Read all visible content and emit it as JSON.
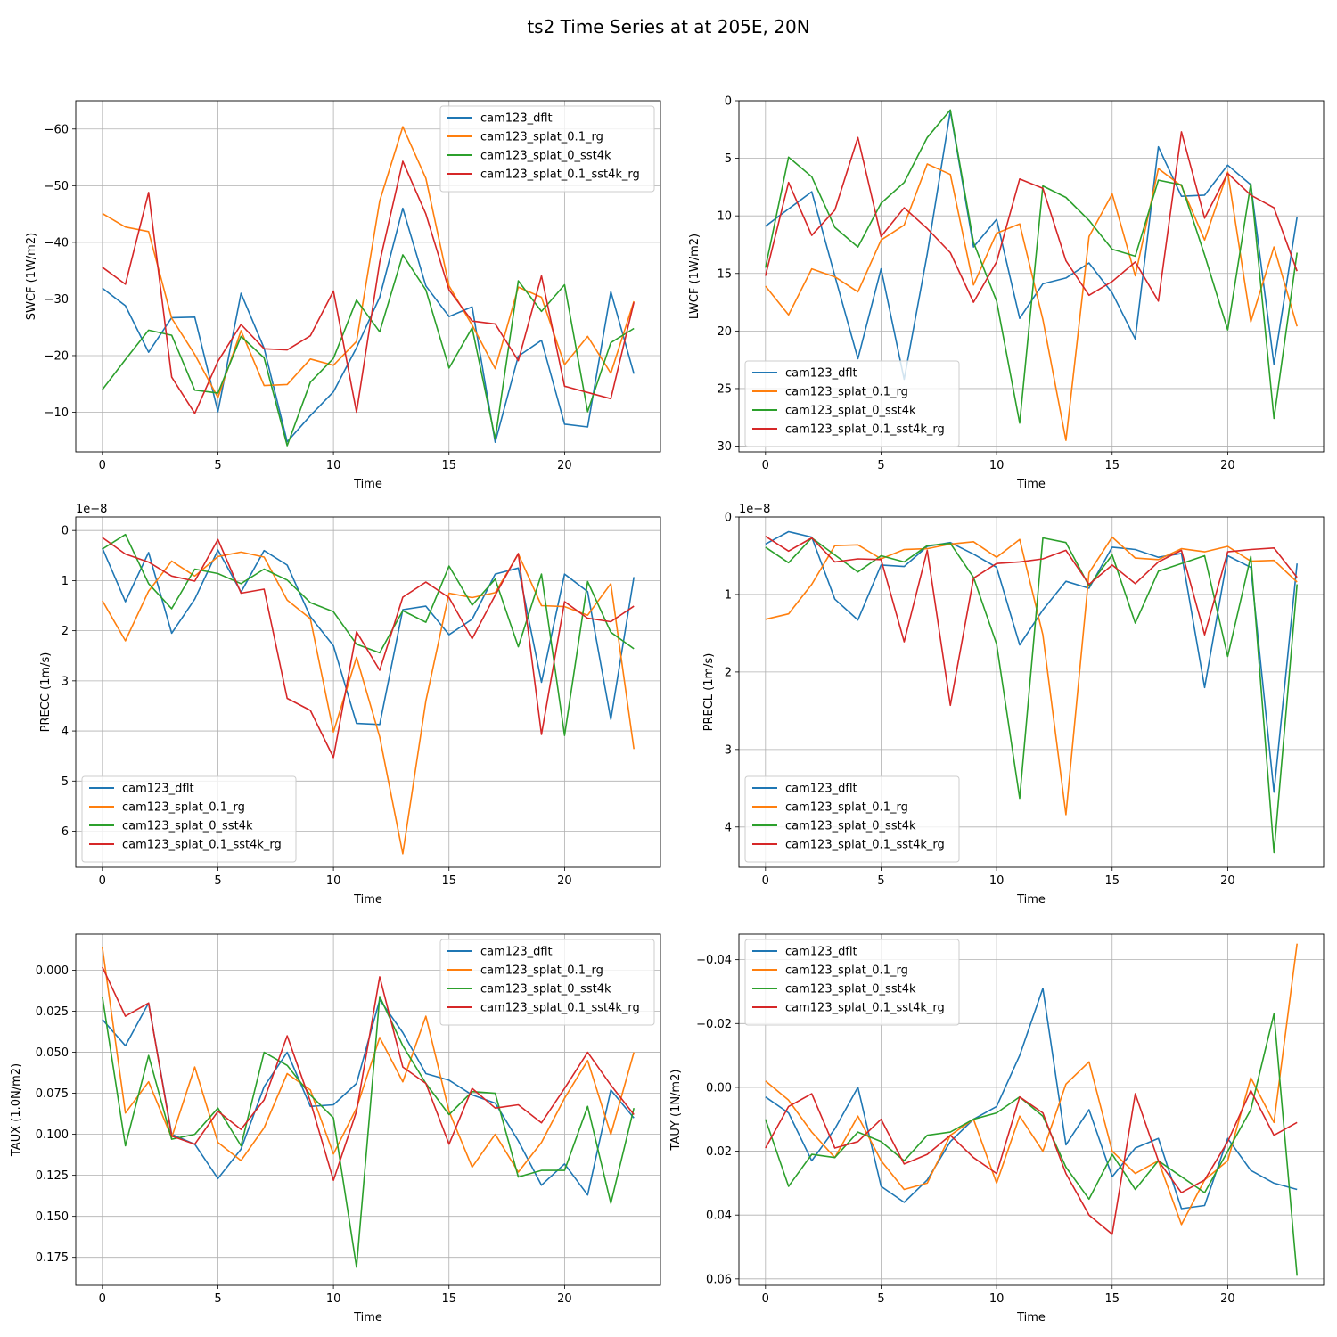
{
  "figure_title": "ts2 Time Series at at 205E, 20N",
  "series_colors": {
    "cam123_dflt": "#1f77b4",
    "cam123_splat_0.1_rg": "#ff7f0e",
    "cam123_splat_0_sst4k": "#2ca02c",
    "cam123_splat_0.1_sst4k_rg": "#d62728"
  },
  "chart_data": [
    {
      "type": "line",
      "xlabel": "Time",
      "ylabel": "SWCF (1W/m2)",
      "ylim": [
        -65,
        -3
      ],
      "inverted_y": true,
      "xlim": [
        -1.15,
        24.15
      ],
      "xticks": [
        0,
        5,
        10,
        15,
        20
      ],
      "yticks": [
        -60,
        -50,
        -40,
        -30,
        -20,
        -10
      ],
      "ytick_labels": [
        "−60",
        "−50",
        "−40",
        "−30",
        "−20",
        "−10"
      ],
      "offset_label": "",
      "legend_position": "upper right",
      "x": [
        0,
        1,
        2,
        3,
        4,
        5,
        6,
        7,
        8,
        9,
        10,
        11,
        12,
        13,
        14,
        15,
        16,
        17,
        18,
        19,
        20,
        21,
        22,
        23
      ],
      "series": [
        {
          "name": "cam123_dflt",
          "values": [
            -31.9,
            -28.8,
            -20.6,
            -26.7,
            -26.8,
            -10.1,
            -31,
            -21.3,
            -4.8,
            -9.4,
            -13.6,
            -21.4,
            -30.3,
            -46,
            -32.3,
            -26.9,
            -28.6,
            -4.7,
            -19.9,
            -22.7,
            -7.9,
            -7.4,
            -31.3,
            -16.8
          ]
        },
        {
          "name": "cam123_splat_0.1_rg",
          "values": [
            -45.1,
            -42.7,
            -41.9,
            -26.6,
            -20.2,
            -12.6,
            -24.4,
            -14.7,
            -14.9,
            -19.4,
            -18.3,
            -22.5,
            -47.3,
            -60.4,
            -51.3,
            -32.3,
            -25.4,
            -17.7,
            -32.1,
            -30.3,
            -18.4,
            -23.4,
            -16.9,
            -29.6
          ]
        },
        {
          "name": "cam123_splat_0_sst4k",
          "values": [
            -14,
            -19.3,
            -24.5,
            -23.6,
            -13.9,
            -13.4,
            -23.4,
            -19.6,
            -4.1,
            -15.3,
            -19.5,
            -29.8,
            -24.2,
            -37.8,
            -31.6,
            -17.8,
            -24.9,
            -5.3,
            -33.2,
            -27.8,
            -32.5,
            -10.1,
            -22.3,
            -24.8
          ]
        },
        {
          "name": "cam123_splat_0.1_sst4k_rg",
          "values": [
            -35.6,
            -32.6,
            -48.8,
            -16.2,
            -9.8,
            -19,
            -25.5,
            -21.2,
            -21,
            -23.5,
            -31.4,
            -10,
            -36.5,
            -54.3,
            -45,
            -31.6,
            -26.1,
            -25.6,
            -19.1,
            -34.1,
            -14.6,
            -13.5,
            -12.4,
            -29.4
          ]
        }
      ]
    },
    {
      "type": "line",
      "xlabel": "Time",
      "ylabel": "LWCF (1W/m2)",
      "ylim": [
        0,
        30.5
      ],
      "inverted_y": true,
      "xlim": [
        -1.15,
        24.15
      ],
      "xticks": [
        0,
        5,
        10,
        15,
        20
      ],
      "yticks": [
        0,
        5,
        10,
        15,
        20,
        25,
        30
      ],
      "ytick_labels": [
        "0",
        "5",
        "10",
        "15",
        "20",
        "25",
        "30"
      ],
      "offset_label": "",
      "legend_position": "lower left",
      "x": [
        0,
        1,
        2,
        3,
        4,
        5,
        6,
        7,
        8,
        9,
        10,
        11,
        12,
        13,
        14,
        15,
        16,
        17,
        18,
        19,
        20,
        21,
        22,
        23
      ],
      "series": [
        {
          "name": "cam123_dflt",
          "values": [
            10.9,
            9.4,
            7.9,
            15.2,
            22.4,
            14.6,
            24.2,
            13.3,
            0.9,
            12.7,
            10.3,
            18.9,
            15.9,
            15.4,
            14.1,
            16.7,
            20.7,
            4,
            8.3,
            8.2,
            5.6,
            7.3,
            22.9,
            10.1
          ]
        },
        {
          "name": "cam123_splat_0.1_rg",
          "values": [
            16.1,
            18.6,
            14.6,
            15.3,
            16.6,
            12.1,
            10.8,
            5.5,
            6.4,
            16,
            11.5,
            10.7,
            19,
            29.5,
            11.8,
            8.1,
            15.2,
            5.9,
            7.4,
            12.1,
            6.2,
            19.2,
            12.7,
            19.6
          ]
        },
        {
          "name": "cam123_splat_0_sst4k",
          "values": [
            14.5,
            4.9,
            6.6,
            11,
            12.7,
            8.9,
            7.1,
            3.2,
            0.8,
            12.3,
            17.4,
            28,
            7.4,
            8.4,
            10.4,
            12.9,
            13.5,
            6.9,
            7.3,
            13.4,
            19.9,
            7.2,
            27.6,
            13.2
          ]
        },
        {
          "name": "cam123_splat_0.1_sst4k_rg",
          "values": [
            15.2,
            7.1,
            11.7,
            9.5,
            3.2,
            11.8,
            9.3,
            11.1,
            13.2,
            17.5,
            14,
            6.8,
            7.6,
            13.9,
            16.9,
            15.7,
            14,
            17.4,
            2.7,
            10.2,
            6.3,
            8.2,
            9.3,
            14.8
          ]
        }
      ]
    },
    {
      "type": "line",
      "xlabel": "Time",
      "ylabel": "PRECC (1m/s)",
      "ylim": [
        -0.27,
        6.72
      ],
      "inverted_y": true,
      "xlim": [
        -1.15,
        24.15
      ],
      "xticks": [
        0,
        5,
        10,
        15,
        20
      ],
      "yticks": [
        0,
        1,
        2,
        3,
        4,
        5,
        6
      ],
      "ytick_labels": [
        "0",
        "1",
        "2",
        "3",
        "4",
        "5",
        "6"
      ],
      "offset_label": "1e−8",
      "legend_position": "lower left",
      "x": [
        0,
        1,
        2,
        3,
        4,
        5,
        6,
        7,
        8,
        9,
        10,
        11,
        12,
        13,
        14,
        15,
        16,
        17,
        18,
        19,
        20,
        21,
        22,
        23
      ],
      "series": [
        {
          "name": "cam123_dflt",
          "values": [
            0.35,
            1.42,
            0.44,
            2.05,
            1.37,
            0.39,
            1.23,
            0.4,
            0.69,
            1.72,
            2.3,
            3.85,
            3.87,
            1.58,
            1.51,
            2.08,
            1.77,
            0.87,
            0.75,
            3.03,
            0.87,
            1.22,
            3.77,
            0.93
          ]
        },
        {
          "name": "cam123_splat_0.1_rg",
          "values": [
            1.4,
            2.2,
            1.21,
            0.61,
            0.91,
            0.52,
            0.43,
            0.53,
            1.39,
            1.76,
            4.02,
            2.53,
            4.12,
            6.45,
            3.4,
            1.25,
            1.34,
            1.24,
            0.47,
            1.5,
            1.52,
            1.69,
            1.06,
            4.36
          ]
        },
        {
          "name": "cam123_splat_0_sst4k",
          "values": [
            0.37,
            0.08,
            1.06,
            1.56,
            0.77,
            0.86,
            1.06,
            0.77,
            0.99,
            1.44,
            1.62,
            2.27,
            2.44,
            1.6,
            1.83,
            0.71,
            1.49,
            0.97,
            2.32,
            0.87,
            4.09,
            1.02,
            2.03,
            2.36
          ]
        },
        {
          "name": "cam123_splat_0.1_sst4k_rg",
          "values": [
            0.14,
            0.47,
            0.63,
            0.91,
            1.01,
            0.18,
            1.25,
            1.17,
            3.35,
            3.59,
            4.53,
            2.02,
            2.79,
            1.33,
            1.03,
            1.34,
            2.16,
            1.29,
            0.46,
            4.07,
            1.42,
            1.75,
            1.82,
            1.51
          ]
        }
      ]
    },
    {
      "type": "line",
      "xlabel": "Time",
      "ylabel": "PRECL (1m/s)",
      "ylim": [
        0,
        4.52
      ],
      "inverted_y": true,
      "xlim": [
        -1.15,
        24.15
      ],
      "xticks": [
        0,
        5,
        10,
        15,
        20
      ],
      "yticks": [
        0,
        1,
        2,
        3,
        4
      ],
      "ytick_labels": [
        "0",
        "1",
        "2",
        "3",
        "4"
      ],
      "offset_label": "1e−8",
      "legend_position": "lower left",
      "x": [
        0,
        1,
        2,
        3,
        4,
        5,
        6,
        7,
        8,
        9,
        10,
        11,
        12,
        13,
        14,
        15,
        16,
        17,
        18,
        19,
        20,
        21,
        22,
        23
      ],
      "series": [
        {
          "name": "cam123_dflt",
          "values": [
            0.35,
            0.19,
            0.26,
            1.06,
            1.33,
            0.62,
            0.64,
            0.38,
            0.33,
            0.48,
            0.65,
            1.65,
            1.2,
            0.83,
            0.92,
            0.39,
            0.42,
            0.52,
            0.47,
            2.2,
            0.5,
            0.65,
            3.55,
            0.6
          ]
        },
        {
          "name": "cam123_splat_0.1_rg",
          "values": [
            1.32,
            1.25,
            0.87,
            0.37,
            0.36,
            0.54,
            0.42,
            0.41,
            0.35,
            0.32,
            0.52,
            0.29,
            1.52,
            3.84,
            0.72,
            0.26,
            0.53,
            0.55,
            0.41,
            0.45,
            0.38,
            0.57,
            0.56,
            0.84
          ]
        },
        {
          "name": "cam123_splat_0_sst4k",
          "values": [
            0.39,
            0.59,
            0.27,
            0.49,
            0.71,
            0.5,
            0.58,
            0.37,
            0.34,
            0.78,
            1.64,
            3.63,
            0.27,
            0.33,
            0.89,
            0.49,
            1.37,
            0.7,
            0.6,
            0.5,
            1.8,
            0.51,
            4.33,
            0.87
          ]
        },
        {
          "name": "cam123_splat_0.1_sst4k_rg",
          "values": [
            0.25,
            0.44,
            0.27,
            0.58,
            0.54,
            0.55,
            1.61,
            0.43,
            2.43,
            0.79,
            0.6,
            0.58,
            0.54,
            0.43,
            0.87,
            0.62,
            0.86,
            0.58,
            0.43,
            1.52,
            0.45,
            0.42,
            0.4,
            0.78
          ]
        }
      ]
    },
    {
      "type": "line",
      "xlabel": "Time",
      "ylabel": "TAUX (1.0N/m2)",
      "ylim": [
        -0.022,
        0.192
      ],
      "inverted_y": true,
      "xlim": [
        -1.15,
        24.15
      ],
      "xticks": [
        0,
        5,
        10,
        15,
        20
      ],
      "yticks": [
        0,
        0.025,
        0.05,
        0.075,
        0.1,
        0.125,
        0.15,
        0.175
      ],
      "ytick_labels": [
        "0.000",
        "0.025",
        "0.050",
        "0.075",
        "0.100",
        "0.125",
        "0.150",
        "0.175"
      ],
      "offset_label": "",
      "legend_position": "upper right",
      "x": [
        0,
        1,
        2,
        3,
        4,
        5,
        6,
        7,
        8,
        9,
        10,
        11,
        12,
        13,
        14,
        15,
        16,
        17,
        18,
        19,
        20,
        21,
        22,
        23
      ],
      "series": [
        {
          "name": "cam123_dflt",
          "values": [
            0.03,
            0.046,
            0.02,
            0.1,
            0.106,
            0.127,
            0.109,
            0.071,
            0.05,
            0.083,
            0.082,
            0.069,
            0.018,
            0.038,
            0.063,
            0.067,
            0.076,
            0.081,
            0.104,
            0.131,
            0.118,
            0.137,
            0.073,
            0.09
          ]
        },
        {
          "name": "cam123_splat_0.1_rg",
          "values": [
            -0.014,
            0.087,
            0.068,
            0.102,
            0.059,
            0.105,
            0.116,
            0.096,
            0.063,
            0.073,
            0.112,
            0.084,
            0.041,
            0.068,
            0.028,
            0.086,
            0.12,
            0.1,
            0.123,
            0.105,
            0.078,
            0.055,
            0.1,
            0.05
          ]
        },
        {
          "name": "cam123_splat_0_sst4k",
          "values": [
            0.016,
            0.107,
            0.052,
            0.103,
            0.1,
            0.084,
            0.107,
            0.05,
            0.058,
            0.076,
            0.09,
            0.181,
            0.016,
            0.046,
            0.069,
            0.088,
            0.074,
            0.075,
            0.126,
            0.122,
            0.122,
            0.083,
            0.142,
            0.084
          ]
        },
        {
          "name": "cam123_splat_0.1_sst4k_rg",
          "values": [
            -0.002,
            0.028,
            0.02,
            0.101,
            0.106,
            0.086,
            0.097,
            0.079,
            0.04,
            0.08,
            0.128,
            0.086,
            0.004,
            0.059,
            0.069,
            0.106,
            0.072,
            0.084,
            0.082,
            0.093,
            0.072,
            0.05,
            0.07,
            0.088
          ]
        }
      ]
    },
    {
      "type": "line",
      "xlabel": "Time",
      "ylabel": "TAUY (1N/m2)",
      "ylim": [
        -0.048,
        0.062
      ],
      "inverted_y": true,
      "xlim": [
        -1.15,
        24.15
      ],
      "xticks": [
        0,
        5,
        10,
        15,
        20
      ],
      "yticks": [
        -0.04,
        -0.02,
        0,
        0.02,
        0.04,
        0.06
      ],
      "ytick_labels": [
        "−0.04",
        "−0.02",
        "0.00",
        "0.02",
        "0.04",
        "0.06"
      ],
      "offset_label": "",
      "legend_position": "upper left",
      "x": [
        0,
        1,
        2,
        3,
        4,
        5,
        6,
        7,
        8,
        9,
        10,
        11,
        12,
        13,
        14,
        15,
        16,
        17,
        18,
        19,
        20,
        21,
        22,
        23
      ],
      "series": [
        {
          "name": "cam123_dflt",
          "values": [
            0.003,
            0.008,
            0.023,
            0.013,
            0,
            0.031,
            0.036,
            0.029,
            0.017,
            0.01,
            0.006,
            -0.01,
            -0.031,
            0.018,
            0.007,
            0.028,
            0.019,
            0.016,
            0.038,
            0.037,
            0.016,
            0.026,
            0.03,
            0.032
          ]
        },
        {
          "name": "cam123_splat_0.1_rg",
          "values": [
            -0.002,
            0.004,
            0.014,
            0.022,
            0.009,
            0.023,
            0.032,
            0.03,
            0.015,
            0.01,
            0.03,
            0.009,
            0.02,
            -0.001,
            -0.008,
            0.02,
            0.027,
            0.023,
            0.043,
            0.029,
            0.023,
            -0.003,
            0.011,
            -0.045
          ]
        },
        {
          "name": "cam123_splat_0_sst4k",
          "values": [
            0.01,
            0.031,
            0.021,
            0.022,
            0.014,
            0.017,
            0.023,
            0.015,
            0.014,
            0.01,
            0.008,
            0.003,
            0.009,
            0.025,
            0.035,
            0.021,
            0.032,
            0.023,
            0.028,
            0.033,
            0.02,
            0.007,
            -0.023,
            0.059
          ]
        },
        {
          "name": "cam123_splat_0.1_sst4k_rg",
          "values": [
            0.019,
            0.006,
            0.002,
            0.019,
            0.017,
            0.01,
            0.024,
            0.021,
            0.015,
            0.022,
            0.027,
            0.003,
            0.008,
            0.027,
            0.04,
            0.046,
            0.002,
            0.023,
            0.033,
            0.029,
            0.017,
            0.001,
            0.015,
            0.011
          ]
        }
      ]
    }
  ]
}
